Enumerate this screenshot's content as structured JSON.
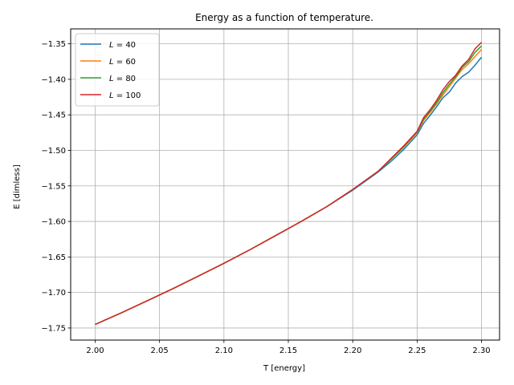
{
  "chart_data": {
    "type": "line",
    "title": "Energy as a function of temperature.",
    "xlabel": "T [energy]",
    "ylabel": "E [dimless]",
    "xlim": [
      1.981,
      2.314
    ],
    "ylim": [
      -1.767,
      -1.329
    ],
    "xticks": [
      2.0,
      2.05,
      2.1,
      2.15,
      2.2,
      2.25,
      2.3
    ],
    "xtick_labels": [
      "2.00",
      "2.05",
      "2.10",
      "2.15",
      "2.20",
      "2.25",
      "2.30"
    ],
    "yticks": [
      -1.75,
      -1.7,
      -1.65,
      -1.6,
      -1.55,
      -1.5,
      -1.45,
      -1.4,
      -1.35
    ],
    "ytick_labels": [
      "−1.75",
      "−1.70",
      "−1.65",
      "−1.60",
      "−1.55",
      "−1.50",
      "−1.45",
      "−1.40",
      "−1.35"
    ],
    "grid": true,
    "legend_position": "top-left",
    "x": [
      2.0,
      2.02,
      2.04,
      2.06,
      2.08,
      2.1,
      2.12,
      2.14,
      2.16,
      2.18,
      2.2,
      2.22,
      2.23,
      2.24,
      2.25,
      2.255,
      2.26,
      2.265,
      2.27,
      2.275,
      2.28,
      2.285,
      2.29,
      2.295,
      2.3
    ],
    "series": [
      {
        "name_prefix": "L",
        "name_value": "= 40",
        "color": "#1f77b4",
        "values": [
          -1.745,
          -1.729,
          -1.712,
          -1.695,
          -1.677,
          -1.659,
          -1.64,
          -1.62,
          -1.6,
          -1.579,
          -1.556,
          -1.53,
          -1.515,
          -1.498,
          -1.478,
          -1.462,
          -1.451,
          -1.439,
          -1.426,
          -1.418,
          -1.405,
          -1.396,
          -1.39,
          -1.38,
          -1.369
        ]
      },
      {
        "name_prefix": "L",
        "name_value": "= 60",
        "color": "#ff7f0e",
        "values": [
          -1.745,
          -1.729,
          -1.712,
          -1.695,
          -1.677,
          -1.659,
          -1.64,
          -1.62,
          -1.6,
          -1.579,
          -1.555,
          -1.529,
          -1.512,
          -1.495,
          -1.475,
          -1.458,
          -1.447,
          -1.435,
          -1.422,
          -1.41,
          -1.398,
          -1.386,
          -1.378,
          -1.368,
          -1.358
        ]
      },
      {
        "name_prefix": "L",
        "name_value": "= 80",
        "color": "#2ca02c",
        "values": [
          -1.745,
          -1.729,
          -1.712,
          -1.695,
          -1.677,
          -1.659,
          -1.64,
          -1.62,
          -1.6,
          -1.579,
          -1.555,
          -1.529,
          -1.512,
          -1.494,
          -1.474,
          -1.456,
          -1.445,
          -1.433,
          -1.419,
          -1.407,
          -1.396,
          -1.383,
          -1.375,
          -1.362,
          -1.353
        ]
      },
      {
        "name_prefix": "L",
        "name_value": "= 100",
        "color": "#d62728",
        "values": [
          -1.745,
          -1.729,
          -1.712,
          -1.695,
          -1.677,
          -1.659,
          -1.64,
          -1.62,
          -1.6,
          -1.579,
          -1.555,
          -1.529,
          -1.511,
          -1.493,
          -1.473,
          -1.454,
          -1.443,
          -1.43,
          -1.415,
          -1.403,
          -1.394,
          -1.381,
          -1.372,
          -1.357,
          -1.348
        ]
      }
    ]
  }
}
